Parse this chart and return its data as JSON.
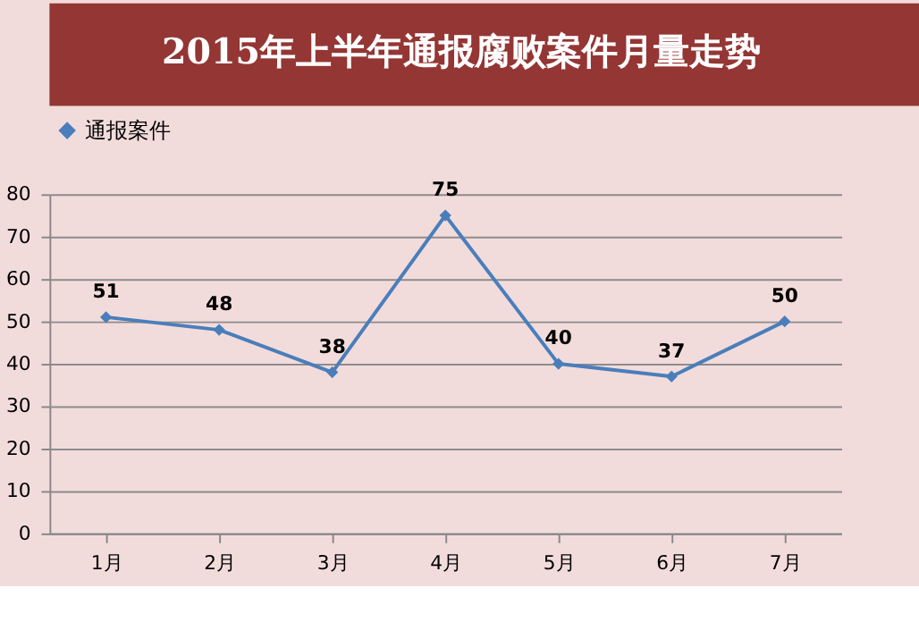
{
  "chart_data": {
    "type": "line",
    "title": "2015年上半年通报腐败案件月量走势",
    "categories": [
      "1月",
      "2月",
      "3月",
      "4月",
      "5月",
      "6月",
      "7月"
    ],
    "series": [
      {
        "name": "通报案件",
        "color": "#4a7ebb",
        "values": [
          51,
          48,
          38,
          75,
          40,
          37,
          50
        ]
      }
    ],
    "ylim": [
      0,
      80
    ],
    "yticks": [
      0,
      10,
      20,
      30,
      40,
      50,
      60,
      70,
      80
    ],
    "grid": "y",
    "legend": "top left",
    "marker": "diamond",
    "line_style": "solid",
    "data_labels": true
  }
}
